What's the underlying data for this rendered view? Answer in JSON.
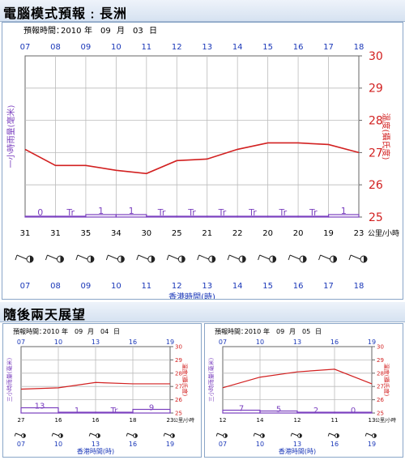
{
  "main": {
    "title": "電腦模式預報﹕長洲",
    "issue": {
      "label": "預報時間",
      "year": "2010",
      "year_unit": "年",
      "month": "09",
      "month_unit": "月",
      "day": "03",
      "day_unit": "日"
    },
    "chart_data": {
      "type": "line",
      "x": [
        "07",
        "08",
        "09",
        "10",
        "11",
        "12",
        "13",
        "14",
        "15",
        "16",
        "17",
        "18"
      ],
      "series": [
        {
          "name": "溫度(攝氏度)",
          "values": [
            27.1,
            26.6,
            26.6,
            26.45,
            26.35,
            26.75,
            26.8,
            27.1,
            27.3,
            27.3,
            27.25,
            27.0
          ]
        }
      ],
      "rain_bars": [
        {
          "x": [
            "07",
            "08"
          ],
          "label": "0"
        },
        {
          "x": [
            "08",
            "09"
          ],
          "label": "Tr"
        },
        {
          "x": [
            "09",
            "10"
          ],
          "label": "1"
        },
        {
          "x": [
            "10",
            "11"
          ],
          "label": "1"
        },
        {
          "x": [
            "11",
            "12"
          ],
          "label": "Tr"
        },
        {
          "x": [
            "12",
            "13"
          ],
          "label": "Tr"
        },
        {
          "x": [
            "13",
            "14"
          ],
          "label": "Tr"
        },
        {
          "x": [
            "14",
            "15"
          ],
          "label": "Tr"
        },
        {
          "x": [
            "15",
            "16"
          ],
          "label": "Tr"
        },
        {
          "x": [
            "16",
            "17"
          ],
          "label": "Tr"
        },
        {
          "x": [
            "17",
            "18"
          ],
          "label": "1"
        }
      ],
      "wind_speed": [
        "31",
        "31",
        "35",
        "34",
        "30",
        "25",
        "21",
        "22",
        "20",
        "20",
        "19",
        "23"
      ],
      "wind_unit": "公里/小時",
      "ylim": [
        25,
        30
      ],
      "yticks": [
        "25",
        "26",
        "27",
        "28",
        "29",
        "30"
      ],
      "ylabel_right": "溫度(攝氏度)",
      "ylabel_left": "一小時雨量(毫米)",
      "xlabel": "香港時間(時)",
      "grid": true,
      "colors": {
        "line": "#d22020",
        "rain": "#7a3fbf",
        "axis_blue": "#1a37b8"
      }
    }
  },
  "outlook": {
    "title": "隨後兩天展望",
    "panels": [
      {
        "issue": {
          "label": "預報時間",
          "year": "2010",
          "year_unit": "年",
          "month": "09",
          "month_unit": "月",
          "day": "04",
          "day_unit": "日"
        },
        "chart_data": {
          "type": "line",
          "x": [
            "07",
            "10",
            "13",
            "16",
            "19"
          ],
          "series": [
            {
              "name": "溫度(攝氏度)",
              "values": [
                26.8,
                26.9,
                27.3,
                27.2,
                27.2
              ]
            }
          ],
          "rain_bars": [
            {
              "x": [
                "07",
                "10"
              ],
              "label": "13"
            },
            {
              "x": [
                "10",
                "13"
              ],
              "label": "1"
            },
            {
              "x": [
                "13",
                "16"
              ],
              "label": "Tr"
            },
            {
              "x": [
                "16",
                "19"
              ],
              "label": "9"
            }
          ],
          "wind_speed": [
            "27",
            "16",
            "16",
            "18",
            "23"
          ],
          "wind_unit": "公里/小時",
          "ylim": [
            25,
            30
          ],
          "yticks": [
            "25",
            "26",
            "27",
            "28",
            "29",
            "30"
          ],
          "ylabel_right": "溫度(攝氏度)",
          "ylabel_left": "三小時雨量(毫米)",
          "xlabel": "香港時間(時)"
        }
      },
      {
        "issue": {
          "label": "預報時間",
          "year": "2010",
          "year_unit": "年",
          "month": "09",
          "month_unit": "月",
          "day": "05",
          "day_unit": "日"
        },
        "chart_data": {
          "type": "line",
          "x": [
            "07",
            "10",
            "13",
            "16",
            "19"
          ],
          "series": [
            {
              "name": "溫度(攝氏度)",
              "values": [
                26.9,
                27.7,
                28.1,
                28.3,
                27.2
              ]
            }
          ],
          "rain_bars": [
            {
              "x": [
                "07",
                "10"
              ],
              "label": "7"
            },
            {
              "x": [
                "10",
                "13"
              ],
              "label": "5"
            },
            {
              "x": [
                "13",
                "16"
              ],
              "label": "2"
            },
            {
              "x": [
                "16",
                "19"
              ],
              "label": "0"
            }
          ],
          "wind_speed": [
            "12",
            "14",
            "12",
            "11",
            "13"
          ],
          "wind_unit": "公里/小時",
          "ylim": [
            25,
            30
          ],
          "yticks": [
            "25",
            "26",
            "27",
            "28",
            "29",
            "30"
          ],
          "ylabel_right": "溫度(攝氏度)",
          "ylabel_left": "三小時雨量(毫米)",
          "xlabel": "香港時間(時)"
        }
      }
    ]
  }
}
